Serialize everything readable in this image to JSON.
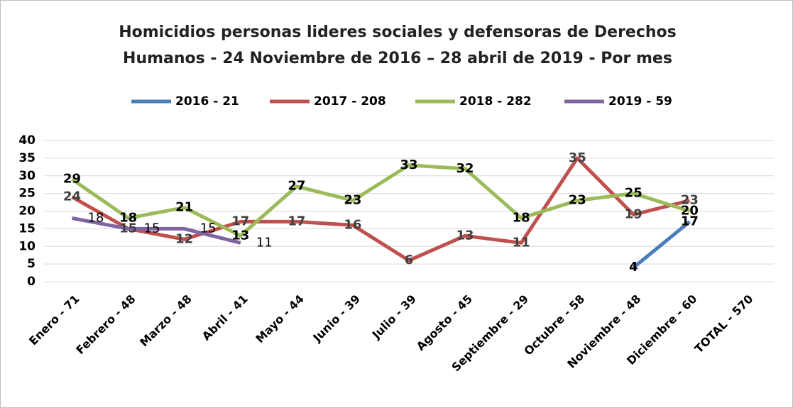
{
  "chart_data": {
    "type": "line",
    "title": "Homicidios personas lideres sociales y defensoras de Derechos",
    "subtitle": "Humanos - 24 Noviembre de 2016 – 28 abril de 2019 - Por mes",
    "categories": [
      "Enero - 71",
      "Febrero - 48",
      "Marzo - 48",
      "Abril - 41",
      "Mayo - 44",
      "Junio - 39",
      "Julio - 39",
      "Agosto - 45",
      "Septiembre - 29",
      "Octubre - 58",
      "Noviembre - 48",
      "Diciembre - 60",
      "TOTAL - 570"
    ],
    "series": [
      {
        "name": "2016 - 21",
        "color": "#4a7ebb",
        "values": [
          null,
          null,
          null,
          null,
          null,
          null,
          null,
          null,
          null,
          null,
          4,
          17,
          null
        ]
      },
      {
        "name": "2017 - 208",
        "color": "#c0504d",
        "values": [
          24,
          15,
          12,
          17,
          17,
          16,
          6,
          13,
          11,
          35,
          19,
          23,
          null
        ]
      },
      {
        "name": "2018 - 282",
        "color": "#9bbb59",
        "values": [
          29,
          18,
          21,
          13,
          27,
          23,
          33,
          32,
          18,
          23,
          25,
          20,
          null
        ]
      },
      {
        "name": "2019 - 59",
        "color": "#8064a2",
        "values": [
          18,
          15,
          15,
          11,
          null,
          null,
          null,
          null,
          null,
          null,
          null,
          null,
          null
        ]
      }
    ],
    "ylim": [
      0,
      40
    ],
    "yticks": [
      0,
      5,
      10,
      15,
      20,
      25,
      30,
      35,
      40
    ],
    "grid": true,
    "legend": "top"
  }
}
